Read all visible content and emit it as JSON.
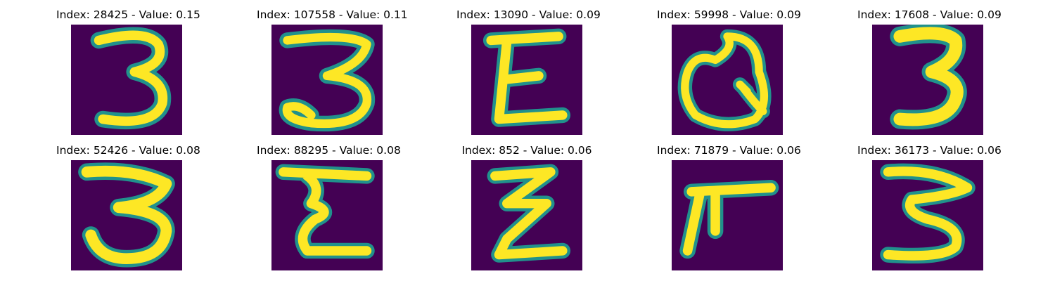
{
  "figure": {
    "background_color": "#440154",
    "stroke_color": "#fde725",
    "edge_color": "#21918c",
    "panels": [
      {
        "title": "Index: 28425 - Value: 0.15",
        "index": 28425,
        "value": 0.15,
        "glyph": "3"
      },
      {
        "title": "Index: 107558 - Value: 0.11",
        "index": 107558,
        "value": 0.11,
        "glyph": "3"
      },
      {
        "title": "Index: 13090 - Value: 0.09",
        "index": 13090,
        "value": 0.09,
        "glyph": "E"
      },
      {
        "title": "Index: 59998 - Value: 0.09",
        "index": 59998,
        "value": 0.09,
        "glyph": "Q"
      },
      {
        "title": "Index: 17608 - Value: 0.09",
        "index": 17608,
        "value": 0.09,
        "glyph": "3"
      },
      {
        "title": "Index: 52426 - Value: 0.08",
        "index": 52426,
        "value": 0.08,
        "glyph": "3"
      },
      {
        "title": "Index: 88295 - Value: 0.08",
        "index": 88295,
        "value": 0.08,
        "glyph": "E"
      },
      {
        "title": "Index: 852 - Value: 0.06",
        "index": 852,
        "value": 0.06,
        "glyph": "Z"
      },
      {
        "title": "Index: 71879 - Value: 0.06",
        "index": 71879,
        "value": 0.06,
        "glyph": "F"
      },
      {
        "title": "Index: 36173 - Value: 0.06",
        "index": 36173,
        "value": 0.06,
        "glyph": "3"
      }
    ]
  }
}
